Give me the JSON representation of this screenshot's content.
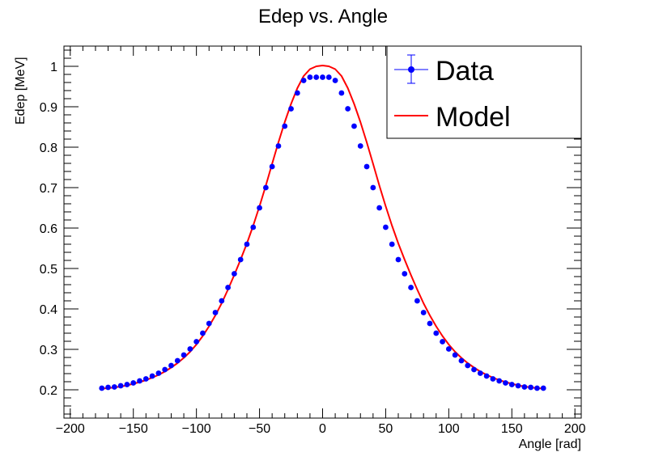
{
  "chart_data": {
    "type": "scatter",
    "title": "Edep vs. Angle",
    "xlabel": "Angle [rad]",
    "ylabel": "Edep [MeV]",
    "xlim": [
      -205,
      205
    ],
    "ylim": [
      0.13,
      1.05
    ],
    "x_ticks": [
      -200,
      -150,
      -100,
      -50,
      0,
      50,
      100,
      150,
      200
    ],
    "x_tick_labels": [
      "−200",
      "−150",
      "−100",
      "−50",
      "0",
      "50",
      "100",
      "150",
      "200"
    ],
    "y_ticks": [
      0.2,
      0.3,
      0.4,
      0.5,
      0.6,
      0.7,
      0.8,
      0.9,
      1
    ],
    "y_tick_labels": [
      "0.2",
      "0.3",
      "0.4",
      "0.5",
      "0.6",
      "0.7",
      "0.8",
      "0.9",
      "1"
    ],
    "grid": false,
    "legend_position": "top-right",
    "series": [
      {
        "name": "Data",
        "kind": "points-with-errorbars",
        "color": "#0000ff",
        "x": [
          -175,
          -170,
          -165,
          -160,
          -155,
          -150,
          -145,
          -140,
          -135,
          -130,
          -125,
          -120,
          -115,
          -110,
          -105,
          -100,
          -95,
          -90,
          -85,
          -80,
          -75,
          -70,
          -65,
          -60,
          -55,
          -50,
          -45,
          -40,
          -35,
          -30,
          -25,
          -20,
          -15,
          -10,
          -5,
          0,
          5,
          10,
          15,
          20,
          25,
          30,
          35,
          40,
          45,
          50,
          55,
          60,
          65,
          70,
          75,
          80,
          85,
          90,
          95,
          100,
          105,
          110,
          115,
          120,
          125,
          130,
          135,
          140,
          145,
          150,
          155,
          160,
          165,
          170,
          175
        ],
        "y": [
          0.204,
          0.206,
          0.207,
          0.21,
          0.213,
          0.217,
          0.222,
          0.227,
          0.234,
          0.241,
          0.25,
          0.26,
          0.272,
          0.286,
          0.301,
          0.319,
          0.34,
          0.364,
          0.391,
          0.42,
          0.453,
          0.487,
          0.522,
          0.56,
          0.602,
          0.65,
          0.7,
          0.752,
          0.803,
          0.852,
          0.895,
          0.934,
          0.965,
          0.973,
          0.973,
          0.973,
          0.973,
          0.965,
          0.934,
          0.895,
          0.852,
          0.803,
          0.752,
          0.7,
          0.65,
          0.602,
          0.56,
          0.522,
          0.487,
          0.453,
          0.42,
          0.391,
          0.364,
          0.34,
          0.319,
          0.301,
          0.286,
          0.272,
          0.26,
          0.25,
          0.241,
          0.234,
          0.227,
          0.222,
          0.217,
          0.213,
          0.21,
          0.207,
          0.206,
          0.204,
          0.204
        ]
      },
      {
        "name": "Model",
        "kind": "line",
        "color": "#ff0000",
        "x": [
          -176,
          -170,
          -165,
          -160,
          -155,
          -150,
          -145,
          -140,
          -135,
          -130,
          -125,
          -120,
          -115,
          -110,
          -105,
          -100,
          -95,
          -90,
          -85,
          -80,
          -75,
          -70,
          -65,
          -60,
          -55,
          -50,
          -45,
          -40,
          -35,
          -30,
          -25,
          -20,
          -15,
          -10,
          -5,
          0,
          5,
          10,
          15,
          20,
          25,
          30,
          35,
          40,
          45,
          50,
          55,
          60,
          65,
          70,
          75,
          80,
          85,
          90,
          95,
          100,
          105,
          110,
          115,
          120,
          125,
          130,
          135,
          140,
          145,
          150,
          155,
          160,
          165,
          170,
          176
        ],
        "y": [
          0.203,
          0.204,
          0.206,
          0.208,
          0.211,
          0.215,
          0.219,
          0.224,
          0.23,
          0.237,
          0.245,
          0.255,
          0.266,
          0.279,
          0.294,
          0.312,
          0.333,
          0.357,
          0.384,
          0.414,
          0.448,
          0.484,
          0.522,
          0.562,
          0.606,
          0.654,
          0.705,
          0.759,
          0.812,
          0.862,
          0.907,
          0.946,
          0.976,
          0.993,
          1.0,
          1.002,
          1.0,
          0.993,
          0.976,
          0.946,
          0.907,
          0.862,
          0.812,
          0.759,
          0.705,
          0.654,
          0.606,
          0.562,
          0.522,
          0.484,
          0.448,
          0.414,
          0.384,
          0.357,
          0.333,
          0.312,
          0.294,
          0.279,
          0.266,
          0.255,
          0.245,
          0.237,
          0.23,
          0.224,
          0.219,
          0.215,
          0.211,
          0.208,
          0.206,
          0.204,
          0.203
        ]
      }
    ]
  }
}
